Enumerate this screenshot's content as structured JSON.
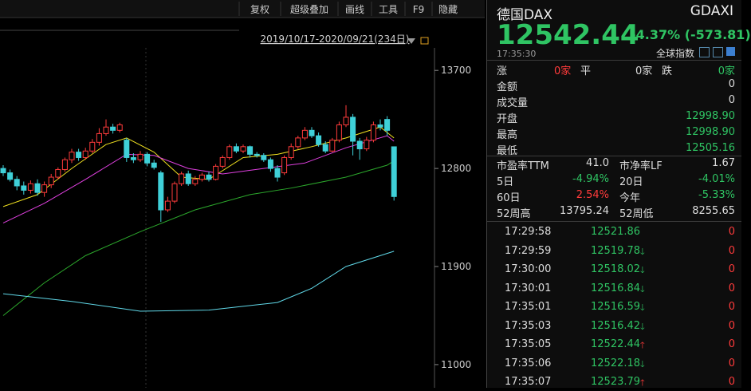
{
  "toolbar": {
    "tabs": [
      "复权",
      "超级叠加",
      "画线",
      "工具",
      "F9",
      "隐藏"
    ],
    "range": "2019/10/17-2020/09/21(234日)"
  },
  "chart": {
    "ylim": [
      10787,
      14346
    ],
    "yticks": [
      13700,
      12800,
      11900,
      11000
    ],
    "candles": {
      "open": [
        12800,
        12760,
        12700,
        12640,
        12600,
        12660,
        12580,
        12650,
        12720,
        12790,
        12880,
        12950,
        12900,
        12960,
        13040,
        13120,
        13180,
        13150,
        13060,
        12900,
        12880,
        12930,
        12850,
        12760,
        12420,
        12500,
        12660,
        12750,
        12660,
        12700,
        12740,
        12700,
        12820,
        12900,
        13000,
        12960,
        13000,
        12930,
        12920,
        12880,
        12800,
        12760,
        12900,
        13000,
        13080,
        13150,
        13100,
        13020,
        12960,
        13060,
        13200,
        13270,
        13050,
        12980,
        13060,
        13200,
        13250,
        12998.9
      ],
      "close": [
        12760,
        12700,
        12640,
        12600,
        12660,
        12580,
        12650,
        12720,
        12790,
        12880,
        12950,
        12900,
        12960,
        13040,
        13120,
        13180,
        13150,
        13200,
        12900,
        12880,
        12930,
        12850,
        12810,
        12420,
        12500,
        12660,
        12750,
        12660,
        12700,
        12740,
        12700,
        12820,
        12900,
        13000,
        12960,
        13000,
        12930,
        12920,
        12880,
        12800,
        12720,
        12900,
        13000,
        13080,
        13150,
        13100,
        13020,
        12960,
        13060,
        13200,
        13270,
        13050,
        12980,
        13060,
        13200,
        13180,
        13150,
        12542.44
      ],
      "high": [
        12830,
        12790,
        12730,
        12680,
        12690,
        12700,
        12680,
        12750,
        12810,
        12900,
        12980,
        12980,
        12990,
        13070,
        13170,
        13250,
        13210,
        13220,
        13080,
        12940,
        12960,
        12950,
        12880,
        12780,
        12540,
        12680,
        12770,
        12780,
        12730,
        12760,
        12770,
        12840,
        12920,
        13020,
        13030,
        13020,
        13010,
        12950,
        12940,
        12900,
        12830,
        12920,
        13030,
        13100,
        13180,
        13180,
        13130,
        13050,
        13080,
        13230,
        13380,
        13300,
        13080,
        13090,
        13230,
        13250,
        13280,
        12998.9
      ],
      "low": [
        12730,
        12680,
        12600,
        12560,
        12570,
        12550,
        12540,
        12620,
        12700,
        12770,
        12850,
        12870,
        12880,
        12940,
        13010,
        13100,
        13120,
        13130,
        12860,
        12850,
        12860,
        12820,
        12790,
        12310,
        12400,
        12480,
        12640,
        12640,
        12640,
        12680,
        12680,
        12690,
        12800,
        12880,
        12940,
        12940,
        12900,
        12900,
        12860,
        12770,
        12680,
        12740,
        12880,
        12980,
        13060,
        13080,
        13000,
        12940,
        12950,
        13040,
        13180,
        12920,
        12880,
        12960,
        13040,
        13150,
        13100,
        12505.16
      ]
    },
    "lines": [
      {
        "color": "#f0e020",
        "x": [
          0,
          5,
          10,
          15,
          18,
          22,
          26,
          30,
          35,
          40,
          45,
          50,
          55,
          57
        ],
        "values": [
          12450,
          12560,
          12800,
          13020,
          13080,
          12950,
          12720,
          12700,
          12900,
          12930,
          13000,
          13080,
          13180,
          13080
        ]
      },
      {
        "color": "#e040e0",
        "x": [
          0,
          6,
          12,
          18,
          22,
          27,
          32,
          38,
          44,
          50,
          56,
          57
        ],
        "values": [
          12300,
          12480,
          12700,
          12930,
          12920,
          12800,
          12750,
          12800,
          12850,
          12990,
          13100,
          13050
        ]
      },
      {
        "color": "#2ca82c",
        "x": [
          0,
          6,
          12,
          20,
          28,
          36,
          42,
          50,
          56,
          57
        ],
        "values": [
          11450,
          11750,
          12000,
          12220,
          12420,
          12560,
          12620,
          12720,
          12830,
          12870
        ]
      },
      {
        "color": "#60d8e8",
        "x": [
          0,
          10,
          20,
          30,
          40,
          45,
          50,
          57
        ],
        "values": [
          11650,
          11580,
          11490,
          11500,
          11570,
          11700,
          11900,
          12040
        ]
      }
    ]
  },
  "quote": {
    "name": "德国DAX",
    "code": "GDAXI",
    "price": "12542.44",
    "change": "-4.37% (-573.81)",
    "time": "17:35:30",
    "market": "全球指数"
  },
  "breadth": {
    "up_label": "涨",
    "up": "0家",
    "flat_label": "平",
    "flat": "0家",
    "down_label": "跌",
    "down": "0家"
  },
  "stats": [
    [
      "金额",
      "0"
    ],
    [
      "成交量",
      "0"
    ],
    [
      "开盘",
      "12998.90"
    ],
    [
      "最高",
      "12998.90"
    ],
    [
      "最低",
      "12505.16"
    ]
  ],
  "ratios": [
    [
      "市盈率TTM",
      "41.0",
      "市净率LF",
      "1.67"
    ],
    [
      "5日",
      "-4.94%",
      "20日",
      "-4.01%"
    ],
    [
      "60日",
      "2.54%",
      "今年",
      "-5.33%"
    ],
    [
      "52周高",
      "13795.24",
      "52周低",
      "8255.65"
    ]
  ],
  "ticks": [
    {
      "time": "17:29:58",
      "price": "12521.86",
      "dir": null,
      "vol": "0"
    },
    {
      "time": "17:29:59",
      "price": "12519.78",
      "dir": "down",
      "vol": "0"
    },
    {
      "time": "17:30:00",
      "price": "12518.02",
      "dir": "down",
      "vol": "0"
    },
    {
      "time": "17:30:01",
      "price": "12516.84",
      "dir": "down",
      "vol": "0"
    },
    {
      "time": "17:35:01",
      "price": "12516.59",
      "dir": "down",
      "vol": "0"
    },
    {
      "time": "17:35:03",
      "price": "12516.42",
      "dir": "down",
      "vol": "0"
    },
    {
      "time": "17:35:05",
      "price": "12522.44",
      "dir": "up",
      "vol": "0"
    },
    {
      "time": "17:35:06",
      "price": "12522.18",
      "dir": "down",
      "vol": "0"
    },
    {
      "time": "17:35:07",
      "price": "12523.79",
      "dir": "up",
      "vol": "0"
    }
  ]
}
